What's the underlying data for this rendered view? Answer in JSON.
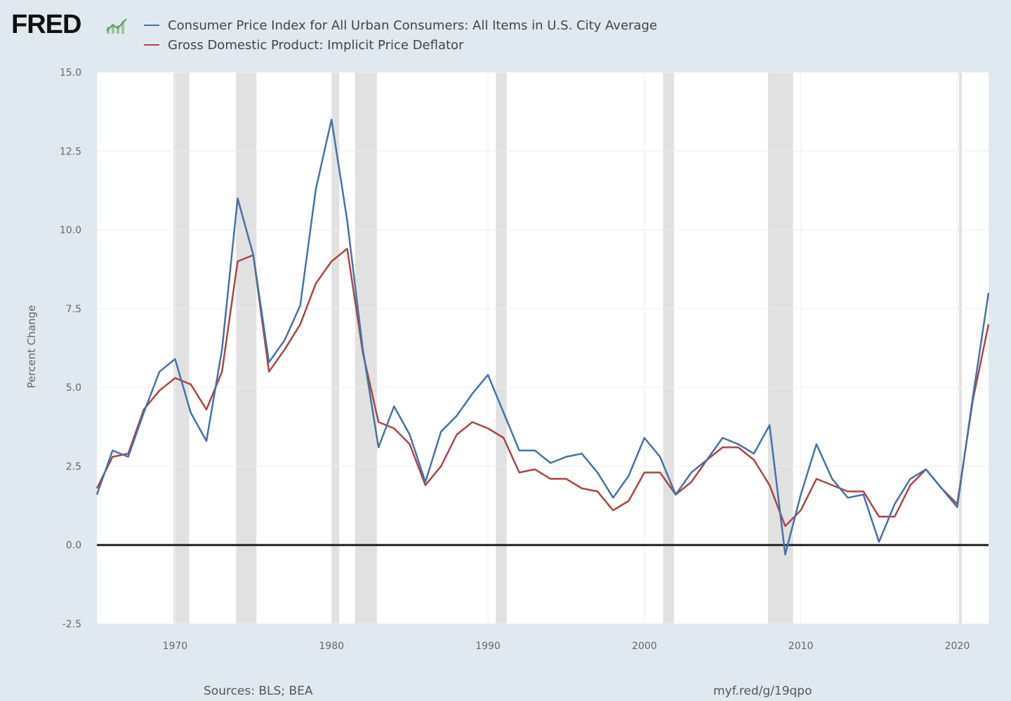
{
  "header": {
    "logo": "FRED"
  },
  "chart_data": {
    "type": "line",
    "title": "",
    "xlabel": "",
    "ylabel": "Percent Change",
    "ylim": [
      -2.5,
      15.0
    ],
    "xlim": [
      1965,
      2022
    ],
    "y_ticks": [
      "-2.5",
      "0.0",
      "2.5",
      "5.0",
      "7.5",
      "10.0",
      "12.5",
      "15.0"
    ],
    "x_ticks": [
      "1970",
      "1980",
      "1990",
      "2000",
      "2010",
      "2020"
    ],
    "grid": true,
    "legend_position": "top",
    "x": [
      1965,
      1966,
      1967,
      1968,
      1969,
      1970,
      1971,
      1972,
      1973,
      1974,
      1975,
      1976,
      1977,
      1978,
      1979,
      1980,
      1981,
      1982,
      1983,
      1984,
      1985,
      1986,
      1987,
      1988,
      1989,
      1990,
      1991,
      1992,
      1993,
      1994,
      1995,
      1996,
      1997,
      1998,
      1999,
      2000,
      2001,
      2002,
      2003,
      2004,
      2005,
      2006,
      2007,
      2008,
      2009,
      2010,
      2011,
      2012,
      2013,
      2014,
      2015,
      2016,
      2017,
      2018,
      2019,
      2020,
      2021,
      2022
    ],
    "series": [
      {
        "name": "Consumer Price Index for All Urban Consumers: All Items in U.S. City Average",
        "color": "#4572a7",
        "values": [
          1.6,
          3.0,
          2.8,
          4.2,
          5.5,
          5.9,
          4.2,
          3.3,
          6.2,
          11.0,
          9.2,
          5.8,
          6.5,
          7.6,
          11.3,
          13.5,
          10.3,
          6.2,
          3.1,
          4.4,
          3.5,
          2.0,
          3.6,
          4.1,
          4.8,
          5.4,
          4.2,
          3.0,
          3.0,
          2.6,
          2.8,
          2.9,
          2.3,
          1.5,
          2.2,
          3.4,
          2.8,
          1.6,
          2.3,
          2.7,
          3.4,
          3.2,
          2.9,
          3.8,
          -0.3,
          1.6,
          3.2,
          2.1,
          1.5,
          1.6,
          0.1,
          1.3,
          2.1,
          2.4,
          1.8,
          1.2,
          4.7,
          8.0
        ]
      },
      {
        "name": "Gross Domestic Product: Implicit Price Deflator",
        "color": "#aa4643",
        "values": [
          1.8,
          2.8,
          2.9,
          4.3,
          4.9,
          5.3,
          5.1,
          4.3,
          5.5,
          9.0,
          9.2,
          5.5,
          6.2,
          7.0,
          8.3,
          9.0,
          9.4,
          6.1,
          3.9,
          3.7,
          3.2,
          1.9,
          2.5,
          3.5,
          3.9,
          3.7,
          3.4,
          2.3,
          2.4,
          2.1,
          2.1,
          1.8,
          1.7,
          1.1,
          1.4,
          2.3,
          2.3,
          1.6,
          2.0,
          2.7,
          3.1,
          3.1,
          2.7,
          1.9,
          0.6,
          1.1,
          2.1,
          1.9,
          1.7,
          1.7,
          0.9,
          0.9,
          1.9,
          2.4,
          1.8,
          1.3,
          4.6,
          7.0
        ]
      }
    ],
    "recessions": [
      [
        1969.9,
        1970.9
      ],
      [
        1973.9,
        1975.2
      ],
      [
        1980.0,
        1980.5
      ],
      [
        1981.5,
        1982.9
      ],
      [
        1990.5,
        1991.2
      ],
      [
        2001.2,
        2001.9
      ],
      [
        2007.9,
        2009.5
      ],
      [
        2020.1,
        2020.3
      ]
    ]
  },
  "footer": {
    "sources": "Sources: BLS; BEA",
    "link": "myf.red/g/19qpo"
  }
}
